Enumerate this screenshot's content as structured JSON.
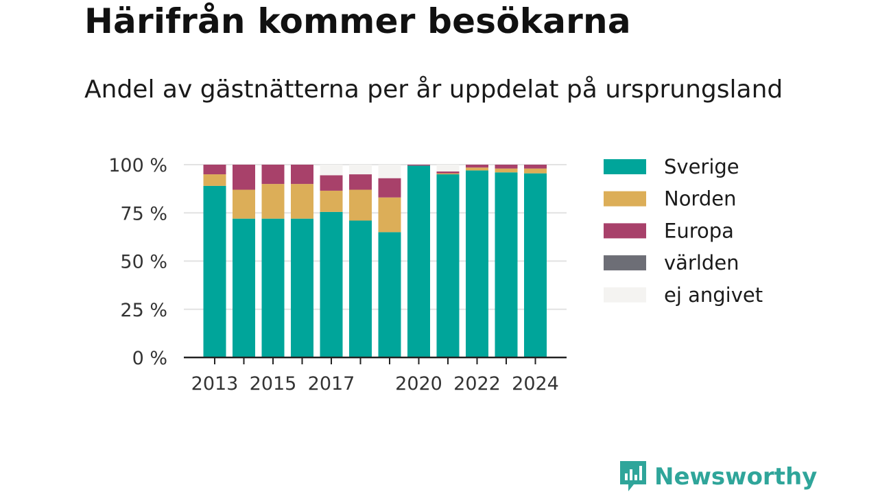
{
  "title": "Härifrån kommer besökarna",
  "subtitle": "Andel av gästnätterna per år uppdelat på ursprungsland",
  "brand": {
    "name": "Newsworthy",
    "icon": "newsworthy-logo-icon",
    "color": "#2fa59a"
  },
  "chart_data": {
    "type": "bar",
    "stacked": true,
    "categories": [
      "2013",
      "2014",
      "2015",
      "2016",
      "2017",
      "2018",
      "2019",
      "2020",
      "2021",
      "2022",
      "2023",
      "2024"
    ],
    "x_tick_labels": [
      "2013",
      "",
      "2015",
      "",
      "2017",
      "",
      "",
      "2020",
      "",
      "2022",
      "",
      "2024"
    ],
    "y_ticks": [
      0,
      25,
      50,
      75,
      100
    ],
    "y_tick_labels": [
      "0 %",
      "25 %",
      "50 %",
      "75 %",
      "100 %"
    ],
    "ylim": [
      0,
      100
    ],
    "grid": true,
    "legend_position": "right",
    "series": [
      {
        "name": "Sverige",
        "color": "#00a59a",
        "values": [
          89,
          72,
          72,
          72,
          75.5,
          71,
          65,
          99.5,
          95,
          97,
          96,
          95.5
        ]
      },
      {
        "name": "Norden",
        "color": "#dcae58",
        "values": [
          6,
          15,
          18,
          18,
          11,
          16,
          18,
          0,
          0.5,
          1.5,
          2,
          2.5
        ]
      },
      {
        "name": "Europa",
        "color": "#a8416a",
        "values": [
          5,
          13,
          10,
          10,
          8,
          8,
          10,
          0.5,
          1,
          1.5,
          2,
          2
        ]
      },
      {
        "name": "världen",
        "color": "#6d6e76",
        "values": [
          0,
          0,
          0,
          0,
          0,
          0,
          0,
          0,
          0,
          0,
          0,
          0
        ]
      },
      {
        "name": "ej angivet",
        "color": "#f4f3f1",
        "values": [
          0,
          0,
          0,
          0,
          5.5,
          5,
          7,
          0,
          3.5,
          0,
          0,
          0
        ]
      }
    ]
  }
}
